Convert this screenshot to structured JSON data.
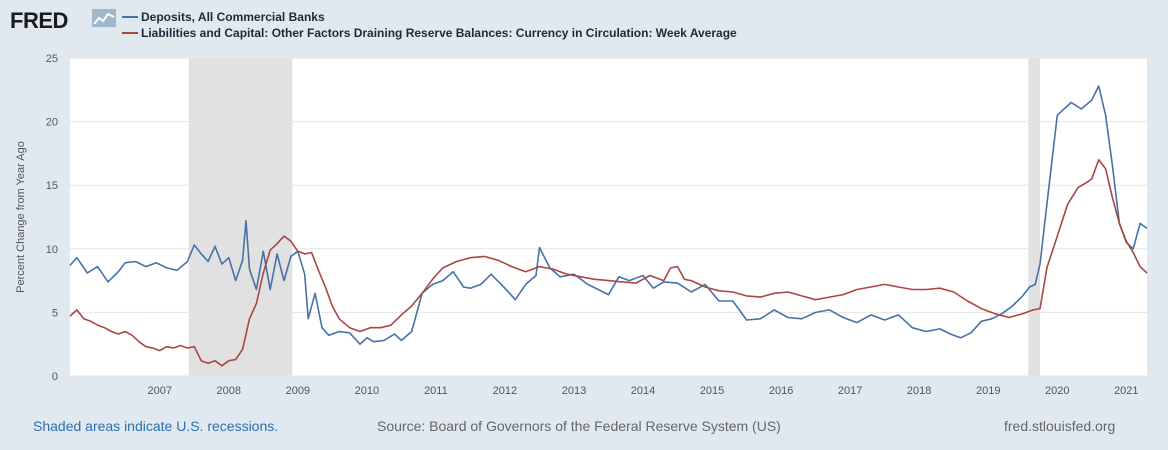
{
  "header": {
    "logo_text": "FRED",
    "legend": [
      {
        "label": "Deposits, All Commercial Banks",
        "color": "#4572a7"
      },
      {
        "label": "Liabilities and Capital: Other Factors Draining Reserve Balances: Currency in Circulation: Week Average",
        "color": "#aa4643"
      }
    ]
  },
  "footer": {
    "recession_note": "Shaded areas indicate U.S. recessions.",
    "source": "Source: Board of Governors of the Federal Reserve System (US)",
    "site": "fred.stlouisfed.org"
  },
  "chart_data": {
    "type": "line",
    "ylabel": "Percent Change from Year Ago",
    "xlim": [
      2006.2,
      2021.8
    ],
    "ylim": [
      0,
      25
    ],
    "yticks": [
      0,
      5,
      10,
      15,
      20,
      25
    ],
    "xticks": [
      "2007",
      "2008",
      "2009",
      "2010",
      "2011",
      "2012",
      "2013",
      "2014",
      "2015",
      "2016",
      "2017",
      "2018",
      "2019",
      "2020",
      "2021"
    ],
    "recessions": [
      [
        2007.92,
        2009.42
      ],
      [
        2020.08,
        2020.25
      ]
    ],
    "series": [
      {
        "name": "Deposits, All Commercial Banks",
        "color": "#4572a7",
        "x": [
          2006.2,
          2006.3,
          2006.45,
          2006.6,
          2006.75,
          2006.9,
          2007.0,
          2007.15,
          2007.3,
          2007.45,
          2007.6,
          2007.75,
          2007.9,
          2008.0,
          2008.1,
          2008.2,
          2008.3,
          2008.4,
          2008.5,
          2008.6,
          2008.7,
          2008.75,
          2008.8,
          2008.9,
          2009.0,
          2009.1,
          2009.2,
          2009.3,
          2009.4,
          2009.5,
          2009.6,
          2009.65,
          2009.75,
          2009.85,
          2009.95,
          2010.1,
          2010.25,
          2010.4,
          2010.5,
          2010.6,
          2010.75,
          2010.9,
          2011.0,
          2011.15,
          2011.3,
          2011.45,
          2011.6,
          2011.75,
          2011.9,
          2012.0,
          2012.15,
          2012.3,
          2012.5,
          2012.65,
          2012.8,
          2012.95,
          2013.0,
          2013.15,
          2013.3,
          2013.5,
          2013.7,
          2013.85,
          2014.0,
          2014.15,
          2014.3,
          2014.5,
          2014.65,
          2014.8,
          2015.0,
          2015.2,
          2015.4,
          2015.6,
          2015.8,
          2016.0,
          2016.2,
          2016.4,
          2016.6,
          2016.8,
          2017.0,
          2017.2,
          2017.4,
          2017.6,
          2017.8,
          2018.0,
          2018.2,
          2018.4,
          2018.6,
          2018.8,
          2018.95,
          2019.1,
          2019.25,
          2019.4,
          2019.55,
          2019.7,
          2019.85,
          2020.0,
          2020.1,
          2020.18,
          2020.25,
          2020.35,
          2020.5,
          2020.7,
          2020.85,
          2021.0,
          2021.1,
          2021.2,
          2021.3,
          2021.4,
          2021.5,
          2021.6,
          2021.7,
          2021.8
        ],
        "values": [
          8.7,
          9.3,
          8.1,
          8.6,
          7.4,
          8.2,
          8.9,
          9.0,
          8.6,
          8.9,
          8.5,
          8.3,
          9.0,
          10.3,
          9.6,
          9.0,
          10.2,
          8.8,
          9.3,
          7.5,
          9.1,
          12.2,
          8.4,
          6.8,
          9.8,
          6.8,
          9.6,
          7.5,
          9.4,
          9.8,
          8.0,
          4.5,
          6.5,
          3.8,
          3.2,
          3.5,
          3.4,
          2.5,
          3.0,
          2.7,
          2.8,
          3.3,
          2.8,
          3.5,
          6.5,
          7.2,
          7.5,
          8.2,
          7.0,
          6.9,
          7.2,
          8.0,
          6.9,
          6.0,
          7.2,
          7.9,
          10.1,
          8.5,
          7.8,
          8.0,
          7.2,
          6.8,
          6.4,
          7.8,
          7.5,
          7.9,
          6.9,
          7.4,
          7.3,
          6.6,
          7.2,
          5.9,
          5.9,
          4.4,
          4.5,
          5.2,
          4.6,
          4.5,
          5.0,
          5.2,
          4.6,
          4.2,
          4.8,
          4.4,
          4.8,
          3.8,
          3.5,
          3.7,
          3.3,
          3.0,
          3.4,
          4.3,
          4.5,
          4.9,
          5.5,
          6.3,
          7.0,
          7.2,
          8.8,
          13.5,
          20.5,
          21.5,
          21.0,
          21.7,
          22.8,
          20.5,
          16.5,
          12.0,
          10.5,
          10.0,
          12.0,
          11.6
        ]
      },
      {
        "name": "Liabilities and Capital: Other Factors Draining Reserve Balances: Currency in Circulation: Week Average",
        "color": "#aa4643",
        "x": [
          2006.2,
          2006.3,
          2006.4,
          2006.5,
          2006.6,
          2006.7,
          2006.8,
          2006.9,
          2007.0,
          2007.1,
          2007.2,
          2007.3,
          2007.4,
          2007.5,
          2007.6,
          2007.7,
          2007.8,
          2007.9,
          2008.0,
          2008.1,
          2008.2,
          2008.3,
          2008.4,
          2008.5,
          2008.6,
          2008.7,
          2008.8,
          2008.9,
          2009.0,
          2009.1,
          2009.2,
          2009.3,
          2009.4,
          2009.5,
          2009.6,
          2009.7,
          2009.8,
          2009.9,
          2010.0,
          2010.1,
          2010.25,
          2010.4,
          2010.55,
          2010.7,
          2010.85,
          2011.0,
          2011.15,
          2011.3,
          2011.45,
          2011.6,
          2011.8,
          2012.0,
          2012.2,
          2012.4,
          2012.6,
          2012.8,
          2013.0,
          2013.2,
          2013.4,
          2013.6,
          2013.8,
          2014.0,
          2014.2,
          2014.4,
          2014.6,
          2014.8,
          2014.9,
          2015.0,
          2015.1,
          2015.2,
          2015.4,
          2015.6,
          2015.8,
          2016.0,
          2016.2,
          2016.4,
          2016.6,
          2016.8,
          2017.0,
          2017.2,
          2017.4,
          2017.6,
          2017.8,
          2018.0,
          2018.2,
          2018.4,
          2018.6,
          2018.8,
          2019.0,
          2019.2,
          2019.4,
          2019.6,
          2019.8,
          2020.0,
          2020.15,
          2020.25,
          2020.35,
          2020.5,
          2020.65,
          2020.8,
          2020.95,
          2021.0,
          2021.1,
          2021.2,
          2021.3,
          2021.4,
          2021.5,
          2021.6,
          2021.7,
          2021.8
        ],
        "values": [
          4.7,
          5.2,
          4.5,
          4.3,
          4.0,
          3.8,
          3.5,
          3.3,
          3.5,
          3.2,
          2.7,
          2.3,
          2.2,
          2.0,
          2.3,
          2.2,
          2.4,
          2.2,
          2.3,
          1.2,
          1.0,
          1.2,
          0.8,
          1.2,
          1.3,
          2.1,
          4.5,
          5.7,
          8.1,
          9.9,
          10.4,
          11.0,
          10.6,
          9.8,
          9.6,
          9.7,
          8.3,
          7.0,
          5.5,
          4.5,
          3.8,
          3.5,
          3.8,
          3.8,
          4.0,
          4.8,
          5.5,
          6.5,
          7.6,
          8.5,
          9.0,
          9.3,
          9.4,
          9.1,
          8.6,
          8.2,
          8.6,
          8.4,
          8.0,
          7.8,
          7.6,
          7.5,
          7.4,
          7.3,
          7.9,
          7.5,
          8.5,
          8.6,
          7.6,
          7.5,
          7.0,
          6.7,
          6.6,
          6.3,
          6.2,
          6.5,
          6.6,
          6.3,
          6.0,
          6.2,
          6.4,
          6.8,
          7.0,
          7.2,
          7.0,
          6.8,
          6.8,
          6.9,
          6.6,
          5.9,
          5.3,
          4.9,
          4.6,
          4.9,
          5.2,
          5.3,
          8.5,
          11.0,
          13.5,
          14.8,
          15.3,
          15.5,
          17.0,
          16.3,
          14.0,
          12.0,
          10.6,
          9.7,
          8.6,
          8.1
        ]
      }
    ]
  }
}
